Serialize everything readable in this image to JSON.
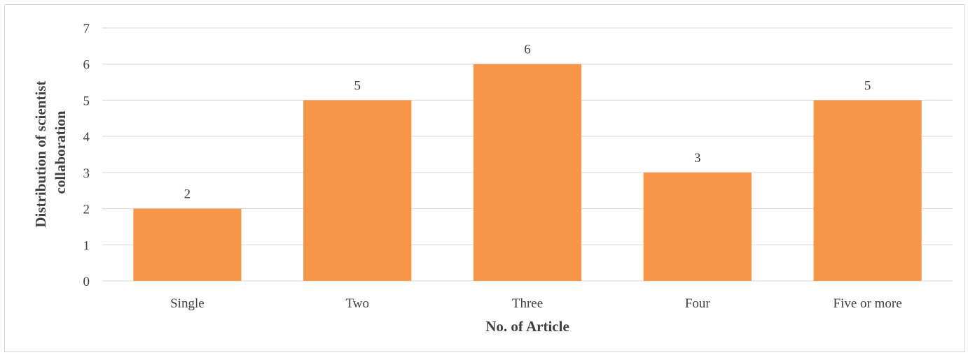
{
  "chart_data": {
    "type": "bar",
    "categories": [
      "Single",
      "Two",
      "Three",
      "Four",
      "Five or more"
    ],
    "values": [
      2,
      5,
      6,
      3,
      5
    ],
    "data_labels": [
      "2",
      "5",
      "6",
      "3",
      "5"
    ],
    "title": "",
    "xlabel": "No. of Article",
    "ylabel_lines": [
      "Distribution of scientist",
      "collaboration"
    ],
    "ylim": [
      0,
      7
    ],
    "yticks": [
      "0",
      "1",
      "2",
      "3",
      "4",
      "5",
      "6",
      "7"
    ],
    "grid": true,
    "legend": "none",
    "bar_color": "#f79646",
    "grid_color": "#d9d9d9",
    "text_color": "#404040"
  }
}
